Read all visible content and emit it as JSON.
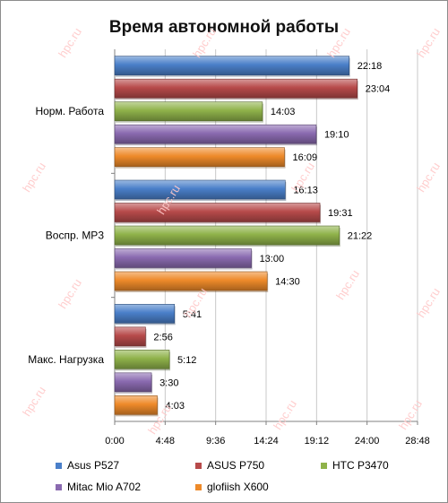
{
  "chart_data": {
    "type": "bar",
    "orientation": "horizontal",
    "title": "Время автономной работы",
    "categories": [
      "Норм. Работа",
      "Воспр. MP3",
      "Макс. Нагрузка"
    ],
    "series": [
      {
        "name": "Asus P527",
        "color": "#4a7fc9",
        "values": [
          "22:18",
          "16:13",
          "5:41"
        ],
        "minutes": [
          1338,
          973,
          341
        ]
      },
      {
        "name": "ASUS P750",
        "color": "#b74a4a",
        "values": [
          "23:04",
          "19:31",
          "2:56"
        ],
        "minutes": [
          1384,
          1171,
          176
        ]
      },
      {
        "name": "HTC P3470",
        "color": "#8fb24a",
        "values": [
          "14:03",
          "21:22",
          "5:12"
        ],
        "minutes": [
          843,
          1282,
          312
        ]
      },
      {
        "name": "Mitac Mio A702",
        "color": "#8a6ab0",
        "values": [
          "19:10",
          "13:00",
          "3:30"
        ],
        "minutes": [
          1150,
          780,
          210
        ]
      },
      {
        "name": "glofiish X600",
        "color": "#ee8a2a",
        "values": [
          "16:09",
          "14:30",
          "4:03"
        ],
        "minutes": [
          969,
          870,
          243
        ]
      }
    ],
    "x_ticks": [
      "0:00",
      "4:48",
      "9:36",
      "14:24",
      "19:12",
      "24:00",
      "28:48"
    ],
    "x_tick_minutes": [
      0,
      288,
      576,
      864,
      1152,
      1440,
      1728
    ],
    "xlim_minutes": [
      0,
      1728
    ],
    "grid": true,
    "legend_position": "bottom",
    "watermark": "hpc.ru"
  }
}
